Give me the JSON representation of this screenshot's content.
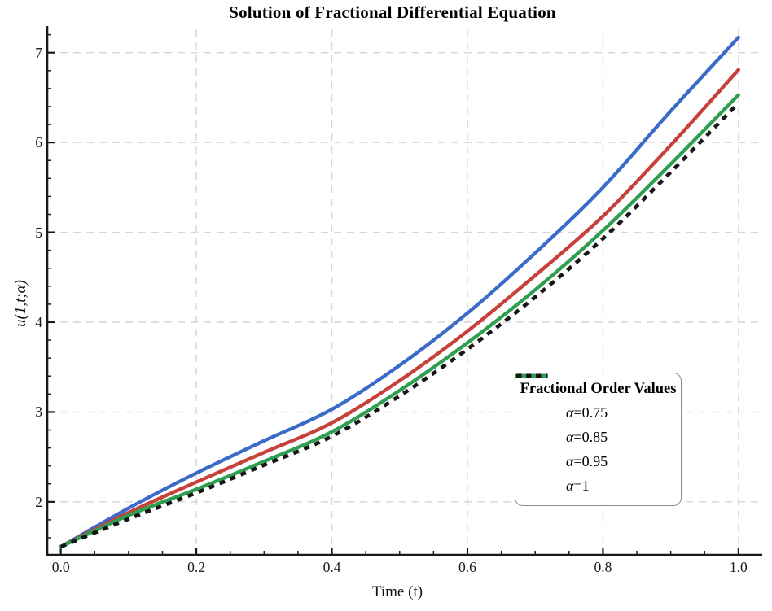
{
  "chart_data": {
    "type": "line",
    "title": "Solution of Fractional Differential Equation",
    "xlabel": "Time (t)",
    "ylabel": "u(1,t;α)",
    "xlim": [
      -0.02,
      1.035
    ],
    "ylim": [
      1.41,
      7.26
    ],
    "grid": true,
    "legend": {
      "title": "Fractional Order Values",
      "position": "right-center"
    },
    "x": [
      0,
      0.1,
      0.2,
      0.3,
      0.4,
      0.5,
      0.6,
      0.7,
      0.8,
      0.9,
      1.0
    ],
    "series": [
      {
        "name": "α=0.75",
        "color": "#3B6BC9",
        "style": "solid",
        "values": [
          1.5,
          1.93,
          2.32,
          2.68,
          3.03,
          3.52,
          4.1,
          4.77,
          5.5,
          6.35,
          7.17
        ]
      },
      {
        "name": "α=0.85",
        "color": "#C8403A",
        "style": "solid",
        "values": [
          1.5,
          1.88,
          2.22,
          2.55,
          2.88,
          3.35,
          3.9,
          4.52,
          5.18,
          5.97,
          6.81
        ]
      },
      {
        "name": "α=0.95",
        "color": "#2E9E50",
        "style": "solid",
        "values": [
          1.5,
          1.85,
          2.14,
          2.45,
          2.78,
          3.24,
          3.77,
          4.36,
          5.02,
          5.76,
          6.53
        ]
      },
      {
        "name": "α=1",
        "color": "#161616",
        "style": "dash",
        "values": [
          1.5,
          1.81,
          2.1,
          2.41,
          2.73,
          3.18,
          3.7,
          4.28,
          4.93,
          5.67,
          6.44
        ]
      }
    ],
    "xticks": {
      "values": [
        0.0,
        0.2,
        0.4,
        0.6,
        0.8,
        1.0
      ],
      "labels": [
        "0.0",
        "0.2",
        "0.4",
        "0.6",
        "0.8",
        "1.0"
      ],
      "minor_step": 0.05
    },
    "yticks": {
      "values": [
        2,
        3,
        4,
        5,
        6,
        7
      ],
      "labels": [
        "2",
        "3",
        "4",
        "5",
        "6",
        "7"
      ],
      "minor_step": 0.2
    },
    "colors": {
      "grid": "#D6D6D6",
      "axis": "#1A1A1A",
      "legend_border": "#8C8C8C",
      "background": "#FFFFFF"
    }
  }
}
